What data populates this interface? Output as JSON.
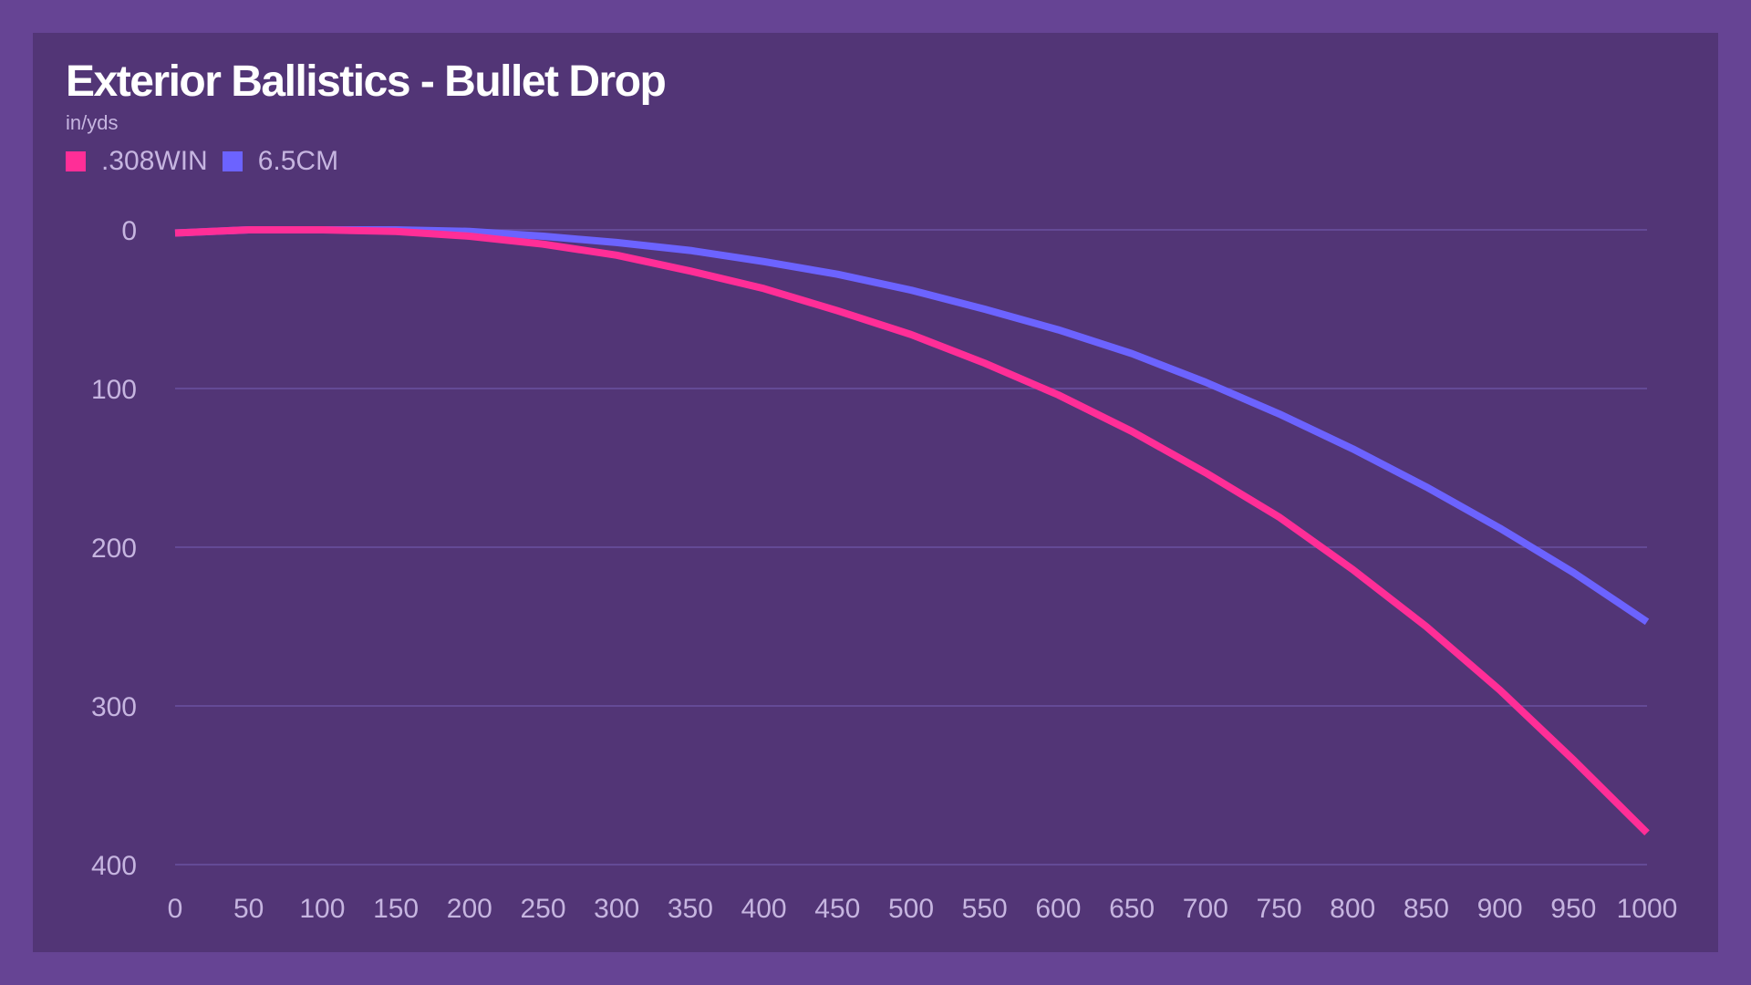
{
  "header": {
    "title": "Exterior Ballistics - Bullet Drop",
    "subtitle": "in/yds"
  },
  "legend": [
    {
      "label": ".308WIN",
      "color": "#ff2e97"
    },
    {
      "label": "6.5CM",
      "color": "#6c63ff"
    }
  ],
  "chart_data": {
    "type": "line",
    "title": "Exterior Ballistics - Bullet Drop",
    "subtitle": "in/yds",
    "x": [
      0,
      50,
      100,
      150,
      200,
      250,
      300,
      350,
      400,
      450,
      500,
      550,
      600,
      650,
      700,
      750,
      800,
      850,
      900,
      950,
      1000
    ],
    "x_ticks": [
      0,
      50,
      100,
      150,
      200,
      250,
      300,
      350,
      400,
      450,
      500,
      550,
      600,
      650,
      700,
      750,
      800,
      850,
      900,
      950,
      1000
    ],
    "y_ticks": [
      0,
      100,
      200,
      300,
      400
    ],
    "xlim": [
      0,
      1000
    ],
    "ylim": [
      0,
      400
    ],
    "y_inverted": true,
    "grid": "horizontal",
    "legend_position": "top-left",
    "series": [
      {
        "name": ".308WIN",
        "color": "#ff2e97",
        "values": [
          2,
          0,
          0,
          1,
          4,
          9,
          16,
          26,
          37,
          51,
          66,
          84,
          104,
          127,
          153,
          181,
          214,
          250,
          290,
          334,
          380
        ]
      },
      {
        "name": "6.5CM",
        "color": "#6c63ff",
        "values": [
          2,
          0,
          0,
          0,
          1,
          4,
          8,
          13,
          20,
          28,
          38,
          50,
          63,
          78,
          96,
          116,
          138,
          162,
          188,
          216,
          247
        ]
      }
    ]
  }
}
